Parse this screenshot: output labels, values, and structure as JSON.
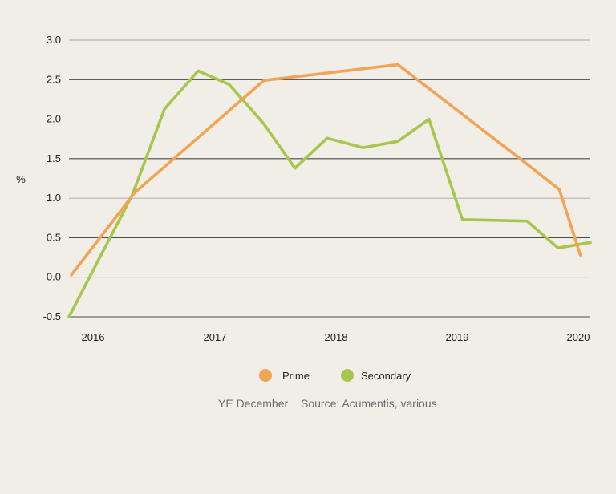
{
  "chart_data": {
    "type": "line",
    "ylabel": "%",
    "ylim": [
      -0.5,
      3.0
    ],
    "yticks": [
      -0.5,
      0.0,
      0.5,
      1.0,
      1.5,
      2.0,
      2.5,
      3.0
    ],
    "ytick_labels": [
      "-0.5",
      "0.0",
      "0.5",
      "1.0",
      "1.5",
      "2.0",
      "2.5",
      "3.0"
    ],
    "xlim": [
      2015.85,
      2020.05
    ],
    "xticks": [
      2016,
      2017,
      2018,
      2019,
      2020
    ],
    "xtick_labels": [
      "2016",
      "2017",
      "2018",
      "2019",
      "2020"
    ],
    "grid": "horizontal",
    "legend": "bottom-center",
    "series": [
      {
        "name": "Prime",
        "color": "#f2a455",
        "x": [
          2015.87,
          2016.38,
          2017.42,
          2018.5,
          2019.5,
          2019.8,
          2019.97
        ],
        "y": [
          0.03,
          1.07,
          2.49,
          2.69,
          1.48,
          1.11,
          0.28
        ]
      },
      {
        "name": "Secondary",
        "color": "#a7c64d",
        "x": [
          2015.85,
          2016.36,
          2016.62,
          2016.89,
          2017.14,
          2017.42,
          2017.67,
          2017.93,
          2018.22,
          2018.5,
          2018.75,
          2019.02,
          2019.54,
          2019.79,
          2020.05
        ],
        "y": [
          -0.5,
          1.04,
          2.13,
          2.61,
          2.44,
          1.94,
          1.38,
          1.76,
          1.64,
          1.72,
          2.0,
          0.73,
          0.71,
          0.37,
          0.44
        ]
      }
    ],
    "footnote_left": "YE December",
    "footnote_right": "Source: Acumentis, various"
  }
}
